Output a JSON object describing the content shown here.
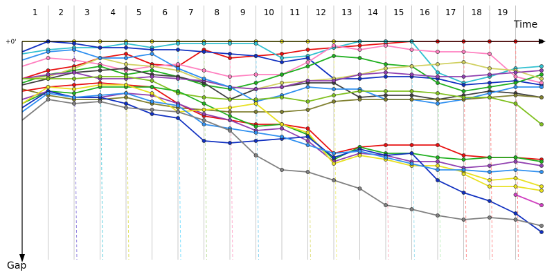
{
  "chart_data": {
    "type": "line",
    "title": "",
    "xlabel": "Time",
    "ylabel": "Gap",
    "y_tick_label": "+0'",
    "laps": [
      "1",
      "2",
      "3",
      "4",
      "5",
      "6",
      "7",
      "8",
      "9",
      "10",
      "11",
      "12",
      "13",
      "14",
      "15",
      "16",
      "17",
      "18",
      "19"
    ],
    "x": [
      0,
      1,
      2,
      3,
      4,
      5,
      6,
      7,
      8,
      9,
      10,
      11,
      12,
      13,
      14,
      15,
      16,
      17,
      18,
      19,
      20
    ],
    "ylim": [
      0,
      100
    ],
    "y_inverted": true,
    "grid": "vertical lap lines",
    "legend": "none",
    "pit_marker_style": "dashed vertical lines",
    "series": [
      {
        "color": "#e8e020",
        "values": [
          0,
          0,
          0,
          0,
          0,
          0,
          0,
          0,
          0,
          0,
          0,
          0,
          0,
          0,
          0,
          0,
          null,
          null,
          null,
          null,
          null
        ]
      },
      {
        "color": "#e81010",
        "values": [
          18,
          14,
          12,
          8,
          6,
          11,
          12,
          4,
          8,
          7,
          6,
          4,
          3,
          2,
          1,
          0,
          0,
          0,
          0,
          0,
          0
        ]
      },
      {
        "color": "#30c0d0",
        "values": [
          6,
          4,
          3,
          3,
          1,
          3,
          1,
          1,
          1,
          1,
          8,
          7,
          3,
          0,
          0,
          0,
          15,
          20,
          17,
          13,
          12
        ]
      },
      {
        "color": "#1030c0",
        "values": [
          5,
          0,
          1,
          3,
          3,
          4,
          4,
          5,
          6,
          7,
          10,
          8,
          18,
          18,
          17,
          17,
          18,
          21,
          20,
          19,
          21
        ]
      },
      {
        "color": "#ff80c0",
        "values": [
          12,
          8,
          9,
          11,
          14,
          12,
          11,
          14,
          17,
          16,
          16,
          10,
          2,
          4,
          2,
          4,
          5,
          5,
          6,
          17,
          20
        ]
      },
      {
        "color": "#20b020",
        "values": [
          20,
          16,
          14,
          12,
          16,
          14,
          17,
          21,
          23,
          20,
          16,
          12,
          7,
          8,
          11,
          12,
          20,
          24,
          22,
          20,
          16
        ]
      },
      {
        "color": "#d0d060",
        "values": [
          18,
          17,
          13,
          8,
          11,
          12,
          14,
          19,
          22,
          23,
          20,
          19,
          18,
          16,
          13,
          12,
          11,
          10,
          13,
          14,
          18
        ]
      },
      {
        "color": "#404040",
        "values": [
          21,
          18,
          15,
          14,
          13,
          16,
          17,
          20,
          28,
          23,
          22,
          20,
          20,
          27,
          26,
          26,
          28,
          26,
          24,
          25,
          27
        ]
      },
      {
        "color": "#9040b0",
        "values": [
          18,
          16,
          15,
          18,
          18,
          17,
          18,
          19,
          22,
          23,
          22,
          19,
          19,
          16,
          15,
          16,
          17,
          17,
          16,
          15,
          14
        ]
      },
      {
        "color": "#3090f0",
        "values": [
          9,
          5,
          4,
          8,
          8,
          6,
          13,
          18,
          22,
          29,
          26,
          22,
          23,
          23,
          28,
          28,
          30,
          28,
          25,
          22,
          22
        ]
      },
      {
        "color": "#808030",
        "values": [
          23,
          26,
          28,
          28,
          27,
          30,
          32,
          33,
          34,
          34,
          34,
          33,
          29,
          28,
          28,
          28,
          28,
          28,
          27,
          26,
          27
        ]
      },
      {
        "color": "#80c020",
        "values": [
          18,
          18,
          18,
          17,
          17,
          19,
          25,
          27,
          28,
          28,
          27,
          29,
          26,
          24,
          24,
          24,
          25,
          27,
          27,
          30,
          40
        ]
      },
      {
        "color": "#e81010",
        "values": [
          24,
          22,
          21,
          20,
          21,
          22,
          30,
          36,
          38,
          40,
          40,
          42,
          54,
          51,
          50,
          50,
          50,
          55,
          56,
          56,
          57
        ]
      },
      {
        "color": "#20b020",
        "values": [
          30,
          24,
          25,
          22,
          22,
          22,
          24,
          30,
          36,
          41,
          40,
          45,
          57,
          51,
          54,
          54,
          56,
          57,
          56,
          56,
          58
        ]
      },
      {
        "color": "#9040b0",
        "values": [
          28,
          24,
          27,
          27,
          25,
          26,
          30,
          35,
          38,
          43,
          42,
          48,
          58,
          54,
          55,
          58,
          58,
          61,
          60,
          58,
          60
        ]
      },
      {
        "color": "#e8e020",
        "values": [
          30,
          22,
          23,
          21,
          21,
          25,
          34,
          33,
          32,
          30,
          40,
          44,
          59,
          55,
          57,
          60,
          60,
          63,
          67,
          66,
          70
        ]
      },
      {
        "color": "#1030c0",
        "values": [
          32,
          24,
          27,
          27,
          30,
          35,
          37,
          48,
          49,
          48,
          47,
          46,
          56,
          52,
          55,
          54,
          67,
          73,
          77,
          83,
          92
        ]
      },
      {
        "color": "#3090f0",
        "values": [
          34,
          25,
          27,
          26,
          25,
          29,
          31,
          40,
          42,
          44,
          46,
          50,
          54,
          53,
          56,
          59,
          62,
          62,
          63,
          62,
          63
        ]
      },
      {
        "color": "#808080",
        "values": [
          38,
          28,
          30,
          29,
          32,
          33,
          34,
          38,
          43,
          55,
          62,
          63,
          67,
          71,
          79,
          81,
          84,
          86,
          85,
          86,
          89
        ]
      },
      {
        "color": "#e8e020",
        "values": [
          null,
          null,
          null,
          null,
          null,
          null,
          null,
          null,
          null,
          null,
          null,
          null,
          null,
          null,
          null,
          null,
          null,
          64,
          70,
          70,
          72
        ]
      },
      {
        "color": "#d040c0",
        "values": [
          null,
          null,
          null,
          null,
          null,
          null,
          null,
          null,
          null,
          null,
          null,
          null,
          null,
          null,
          null,
          null,
          null,
          null,
          null,
          74,
          79
        ]
      }
    ]
  }
}
